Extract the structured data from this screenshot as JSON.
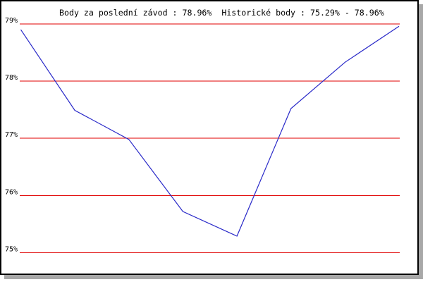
{
  "window": {
    "background": "#ffffff",
    "border_color": "#000000",
    "shadow_color": "#a8a8a8"
  },
  "chart_data": {
    "type": "line",
    "title": "Body za poslední závod : 78.96%  Historické body : 75.29% - 78.96%",
    "last_race_points": "78.96%",
    "historic_range_min": "75.29%",
    "historic_range_max": "78.96%",
    "grid": true,
    "legend": false,
    "xlabel": "",
    "ylabel": "",
    "ylim": [
      75,
      79
    ],
    "gridline_color": "#e00000",
    "y_ticks": [
      {
        "label": "79%",
        "value": 79
      },
      {
        "label": "78%",
        "value": 78
      },
      {
        "label": "77%",
        "value": 77
      },
      {
        "label": "76%",
        "value": 76
      },
      {
        "label": "75%",
        "value": 75
      }
    ],
    "x": [
      1,
      2,
      3,
      4,
      5,
      6,
      7,
      8
    ],
    "series": [
      {
        "name": "points-history",
        "color": "#2828c8",
        "values": [
          78.9,
          77.49,
          76.98,
          75.72,
          75.29,
          77.52,
          78.33,
          78.96
        ]
      }
    ]
  }
}
